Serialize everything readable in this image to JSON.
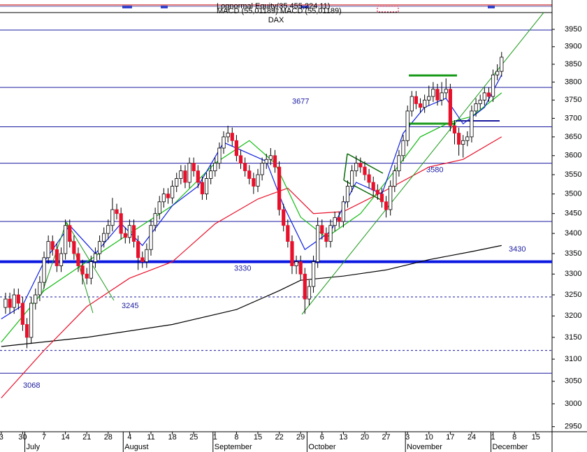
{
  "chart_data": {
    "type": "candlestick",
    "title": "DAX",
    "header_texts": [
      "Lognormal Equity(35.455,224.11)",
      "MACD (55,01189) MACD (55,01189)"
    ],
    "log_scale": true,
    "ylim": [
      2939,
      3999
    ],
    "yticks": [
      2950,
      3000,
      3050,
      3100,
      3150,
      3200,
      3250,
      3300,
      3350,
      3400,
      3450,
      3500,
      3550,
      3600,
      3650,
      3700,
      3750,
      3800,
      3850,
      3900,
      3950
    ],
    "xlim": [
      -0.3,
      128.8
    ],
    "xticks": [
      {
        "value": 0,
        "label": "3"
      },
      {
        "value": 5,
        "label": "30"
      },
      {
        "value": 10,
        "label": "7"
      },
      {
        "value": 15,
        "label": "14"
      },
      {
        "value": 20,
        "label": "21"
      },
      {
        "value": 25,
        "label": "28"
      },
      {
        "value": 30,
        "label": "4"
      },
      {
        "value": 35,
        "label": "11"
      },
      {
        "value": 40,
        "label": "18"
      },
      {
        "value": 45,
        "label": "25"
      },
      {
        "value": 50,
        "label": "1"
      },
      {
        "value": 55,
        "label": "8"
      },
      {
        "value": 60,
        "label": "15"
      },
      {
        "value": 65,
        "label": "22"
      },
      {
        "value": 70,
        "label": "29"
      },
      {
        "value": 75,
        "label": "6"
      },
      {
        "value": 80,
        "label": "13"
      },
      {
        "value": 85,
        "label": "20"
      },
      {
        "value": 90,
        "label": "27"
      },
      {
        "value": 95,
        "label": "3"
      },
      {
        "value": 100,
        "label": "10"
      },
      {
        "value": 105,
        "label": "17"
      },
      {
        "value": 110,
        "label": "24"
      },
      {
        "value": 115,
        "label": "1"
      },
      {
        "value": 120,
        "label": "8"
      },
      {
        "value": 125,
        "label": "15"
      }
    ],
    "month_ticks": [
      {
        "value": 6,
        "label": "July"
      },
      {
        "value": 29,
        "label": "August"
      },
      {
        "value": 50,
        "label": "September"
      },
      {
        "value": 72,
        "label": "October"
      },
      {
        "value": 95,
        "label": "November"
      },
      {
        "value": 115,
        "label": "December"
      }
    ],
    "up_color": "#ffffff",
    "down_color": "#e8102a",
    "x": [
      1,
      2,
      3,
      4,
      5,
      6,
      7,
      8,
      9,
      10,
      11,
      12,
      13,
      14,
      15,
      16,
      17,
      18,
      19,
      20,
      21,
      22,
      23,
      24,
      25,
      26,
      27,
      28,
      29,
      30,
      31,
      32,
      33,
      34,
      35,
      36,
      37,
      38,
      39,
      40,
      41,
      42,
      43,
      44,
      45,
      46,
      47,
      48,
      49,
      50,
      51,
      52,
      53,
      54,
      55,
      56,
      57,
      58,
      59,
      60,
      61,
      62,
      63,
      64,
      65,
      66,
      67,
      68,
      69,
      70,
      71,
      72,
      73,
      74,
      75,
      76,
      77,
      78,
      79,
      80,
      81,
      82,
      83,
      84,
      85,
      86,
      87,
      88,
      89,
      90,
      91,
      92,
      93,
      94,
      95,
      96,
      97,
      98,
      99,
      100,
      101,
      102,
      103,
      104,
      105,
      106,
      107,
      108,
      109,
      110,
      111,
      112,
      113,
      114,
      115,
      116,
      117
    ],
    "open": [
      3220,
      3240,
      3220,
      3250,
      3230,
      3180,
      3150,
      3230,
      3250,
      3280,
      3340,
      3380,
      3360,
      3320,
      3350,
      3420,
      3380,
      3350,
      3320,
      3300,
      3290,
      3330,
      3350,
      3380,
      3400,
      3420,
      3460,
      3450,
      3400,
      3390,
      3420,
      3380,
      3340,
      3330,
      3360,
      3420,
      3450,
      3480,
      3500,
      3490,
      3520,
      3540,
      3560,
      3530,
      3580,
      3560,
      3530,
      3500,
      3540,
      3560,
      3580,
      3620,
      3650,
      3660,
      3640,
      3600,
      3580,
      3560,
      3540,
      3520,
      3550,
      3580,
      3590,
      3600,
      3570,
      3460,
      3420,
      3380,
      3320,
      3330,
      3300,
      3240,
      3270,
      3330,
      3420,
      3400,
      3380,
      3420,
      3440,
      3430,
      3480,
      3520,
      3560,
      3580,
      3570,
      3550,
      3530,
      3510,
      3500,
      3480,
      3460,
      3520,
      3560,
      3600,
      3640,
      3720,
      3760,
      3740,
      3730,
      3750,
      3760,
      3780,
      3750,
      3770,
      3780,
      3680,
      3660,
      3630,
      3640,
      3650,
      3720,
      3740,
      3750,
      3770,
      3760,
      3820,
      3830
    ],
    "high": [
      3255,
      3255,
      3265,
      3265,
      3245,
      3195,
      3245,
      3265,
      3295,
      3355,
      3395,
      3395,
      3375,
      3365,
      3435,
      3435,
      3395,
      3365,
      3335,
      3315,
      3345,
      3365,
      3395,
      3415,
      3435,
      3490,
      3475,
      3465,
      3415,
      3435,
      3435,
      3395,
      3355,
      3375,
      3435,
      3465,
      3495,
      3515,
      3515,
      3535,
      3555,
      3575,
      3575,
      3595,
      3595,
      3575,
      3545,
      3555,
      3575,
      3595,
      3635,
      3665,
      3680,
      3675,
      3655,
      3615,
      3595,
      3575,
      3555,
      3565,
      3595,
      3605,
      3620,
      3615,
      3585,
      3475,
      3435,
      3395,
      3345,
      3345,
      3315,
      3285,
      3345,
      3440,
      3435,
      3415,
      3435,
      3455,
      3455,
      3495,
      3535,
      3575,
      3600,
      3595,
      3585,
      3565,
      3545,
      3525,
      3515,
      3495,
      3535,
      3575,
      3615,
      3655,
      3735,
      3775,
      3775,
      3755,
      3765,
      3790,
      3800,
      3795,
      3800,
      3810,
      3795,
      3695,
      3675,
      3655,
      3665,
      3735,
      3755,
      3765,
      3785,
      3785,
      3835,
      3850,
      3885
    ],
    "low": [
      3205,
      3205,
      3205,
      3215,
      3165,
      3125,
      3135,
      3215,
      3235,
      3265,
      3325,
      3345,
      3305,
      3305,
      3335,
      3365,
      3335,
      3305,
      3275,
      3275,
      3275,
      3315,
      3335,
      3365,
      3385,
      3405,
      3435,
      3385,
      3375,
      3375,
      3365,
      3310,
      3315,
      3315,
      3345,
      3405,
      3435,
      3465,
      3475,
      3475,
      3505,
      3525,
      3515,
      3515,
      3545,
      3515,
      3485,
      3485,
      3525,
      3545,
      3565,
      3605,
      3635,
      3625,
      3585,
      3565,
      3545,
      3525,
      3500,
      3505,
      3535,
      3565,
      3575,
      3555,
      3445,
      3405,
      3365,
      3300,
      3300,
      3285,
      3205,
      3225,
      3255,
      3315,
      3385,
      3365,
      3365,
      3405,
      3415,
      3415,
      3465,
      3505,
      3545,
      3555,
      3535,
      3515,
      3495,
      3485,
      3465,
      3440,
      3445,
      3505,
      3545,
      3585,
      3625,
      3705,
      3725,
      3715,
      3715,
      3735,
      3745,
      3735,
      3735,
      3755,
      3665,
      3630,
      3600,
      3595,
      3625,
      3635,
      3705,
      3725,
      3735,
      3745,
      3745,
      3805,
      3815
    ],
    "close": [
      3240,
      3220,
      3250,
      3230,
      3180,
      3150,
      3230,
      3250,
      3280,
      3340,
      3380,
      3360,
      3320,
      3350,
      3420,
      3380,
      3350,
      3320,
      3300,
      3290,
      3330,
      3350,
      3380,
      3400,
      3420,
      3460,
      3450,
      3400,
      3390,
      3420,
      3380,
      3340,
      3330,
      3360,
      3420,
      3450,
      3480,
      3500,
      3490,
      3520,
      3540,
      3560,
      3530,
      3580,
      3560,
      3530,
      3500,
      3540,
      3560,
      3580,
      3620,
      3650,
      3660,
      3640,
      3600,
      3580,
      3560,
      3540,
      3520,
      3550,
      3580,
      3590,
      3600,
      3570,
      3460,
      3420,
      3380,
      3320,
      3330,
      3300,
      3240,
      3270,
      3330,
      3420,
      3400,
      3380,
      3420,
      3440,
      3430,
      3480,
      3520,
      3560,
      3580,
      3570,
      3550,
      3530,
      3510,
      3500,
      3480,
      3460,
      3520,
      3560,
      3600,
      3640,
      3720,
      3760,
      3740,
      3730,
      3750,
      3760,
      3780,
      3750,
      3770,
      3780,
      3680,
      3660,
      3630,
      3640,
      3650,
      3720,
      3740,
      3750,
      3770,
      3760,
      3820,
      3830,
      3870
    ],
    "lines": [
      {
        "color": "#000000",
        "x": [
          0,
          20,
          40,
          55,
          65,
          70,
          80,
          90,
          100,
          110,
          117
        ],
        "values": [
          3129,
          3150,
          3180,
          3215,
          3260,
          3285,
          3295,
          3310,
          3335,
          3355,
          3370
        ]
      },
      {
        "color": "#e8102a",
        "x": [
          0,
          10,
          20,
          30,
          40,
          50,
          60,
          67,
          73,
          80,
          90,
          100,
          108,
          117
        ],
        "values": [
          3013,
          3120,
          3222,
          3290,
          3330,
          3424,
          3487,
          3515,
          3450,
          3455,
          3510,
          3570,
          3590,
          3650
        ]
      },
      {
        "color": "#11bb11",
        "x": [
          0,
          10,
          20,
          30,
          40,
          50,
          58,
          64,
          70,
          76,
          84,
          92,
          98,
          105,
          110,
          117
        ],
        "values": [
          3139,
          3260,
          3330,
          3400,
          3470,
          3580,
          3640,
          3580,
          3441,
          3390,
          3450,
          3560,
          3650,
          3690,
          3705,
          3770
        ]
      },
      {
        "color": "#1020e0",
        "x": [
          0,
          5,
          10,
          16,
          22,
          28,
          33,
          40,
          46,
          52,
          56,
          62,
          66,
          71,
          77,
          83,
          89,
          94,
          99,
          104,
          108,
          113,
          117
        ],
        "values": [
          3193,
          3225,
          3330,
          3420,
          3350,
          3425,
          3370,
          3470,
          3520,
          3635,
          3615,
          3585,
          3470,
          3360,
          3405,
          3530,
          3500,
          3660,
          3730,
          3755,
          3685,
          3730,
          3820
        ]
      }
    ],
    "levels": [
      3948,
      3785,
      3677,
      3580,
      3430,
      3330,
      3245,
      3120,
      3068
    ]
  }
}
